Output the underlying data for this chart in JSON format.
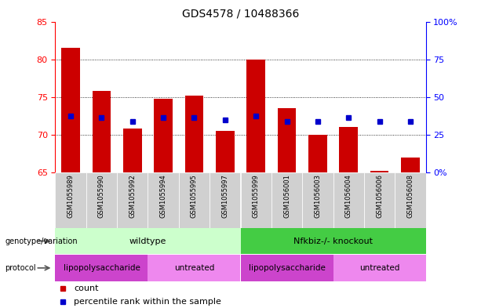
{
  "title": "GDS4578 / 10488366",
  "samples": [
    "GSM1055989",
    "GSM1055990",
    "GSM1055992",
    "GSM1055994",
    "GSM1055995",
    "GSM1055997",
    "GSM1055999",
    "GSM1056001",
    "GSM1056003",
    "GSM1056004",
    "GSM1056006",
    "GSM1056008"
  ],
  "bar_tops": [
    81.5,
    75.8,
    70.8,
    74.8,
    75.2,
    70.5,
    80.0,
    73.5,
    70.0,
    71.0,
    65.2,
    67.0
  ],
  "bar_bottom": 65,
  "percentile_values": [
    72.5,
    72.3,
    71.8,
    72.3,
    72.3,
    72.0,
    72.5,
    71.8,
    71.8,
    72.3,
    71.8,
    71.8
  ],
  "ylim_left": [
    65,
    85
  ],
  "ylim_right": [
    0,
    100
  ],
  "yticks_left": [
    65,
    70,
    75,
    80,
    85
  ],
  "yticks_right": [
    0,
    25,
    50,
    75,
    100
  ],
  "ytick_labels_right": [
    "0%",
    "25",
    "50",
    "75",
    "100%"
  ],
  "bar_color": "#cc0000",
  "percentile_color": "#0000cc",
  "genotype_groups": [
    {
      "label": "wildtype",
      "start": 0,
      "end": 5,
      "color": "#ccffcc"
    },
    {
      "label": "Nfkbiz-/- knockout",
      "start": 6,
      "end": 11,
      "color": "#44cc44"
    }
  ],
  "protocol_groups": [
    {
      "label": "lipopolysaccharide",
      "start": 0,
      "end": 2,
      "color": "#cc44cc"
    },
    {
      "label": "untreated",
      "start": 3,
      "end": 5,
      "color": "#ee88ee"
    },
    {
      "label": "lipopolysaccharide",
      "start": 6,
      "end": 8,
      "color": "#cc44cc"
    },
    {
      "label": "untreated",
      "start": 9,
      "end": 11,
      "color": "#ee88ee"
    }
  ],
  "genotype_label": "genotype/variation",
  "protocol_label": "protocol",
  "legend_items": [
    {
      "label": "count",
      "color": "#cc0000"
    },
    {
      "label": "percentile rank within the sample",
      "color": "#0000cc"
    }
  ]
}
